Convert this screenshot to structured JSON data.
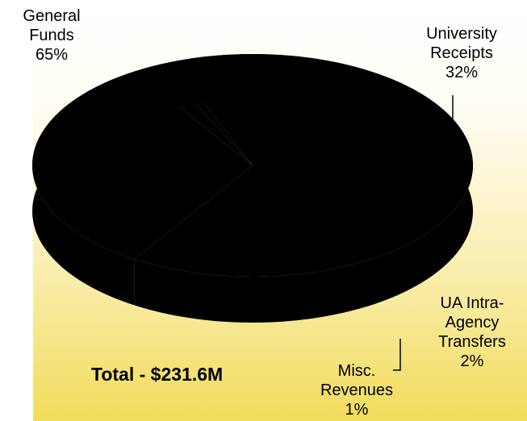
{
  "colors": {
    "pie": "#000000",
    "leader": "#000000",
    "background_bottom": "#f2dc5c"
  },
  "chart_data": {
    "type": "pie",
    "title": "",
    "slices": [
      {
        "name": "General Funds",
        "value": 65,
        "label": "General\nFunds\n65%"
      },
      {
        "name": "University Receipts",
        "value": 32,
        "label": "University\nReceipts\n32%"
      },
      {
        "name": "UA Intra-Agency Transfers",
        "value": 2,
        "label": "UA Intra-\nAgency\nTransfers\n2%"
      },
      {
        "name": "Misc. Revenues",
        "value": 1,
        "label": "Misc.\nRevenues\n1%"
      }
    ],
    "annotation": "Total - $231.6M"
  }
}
